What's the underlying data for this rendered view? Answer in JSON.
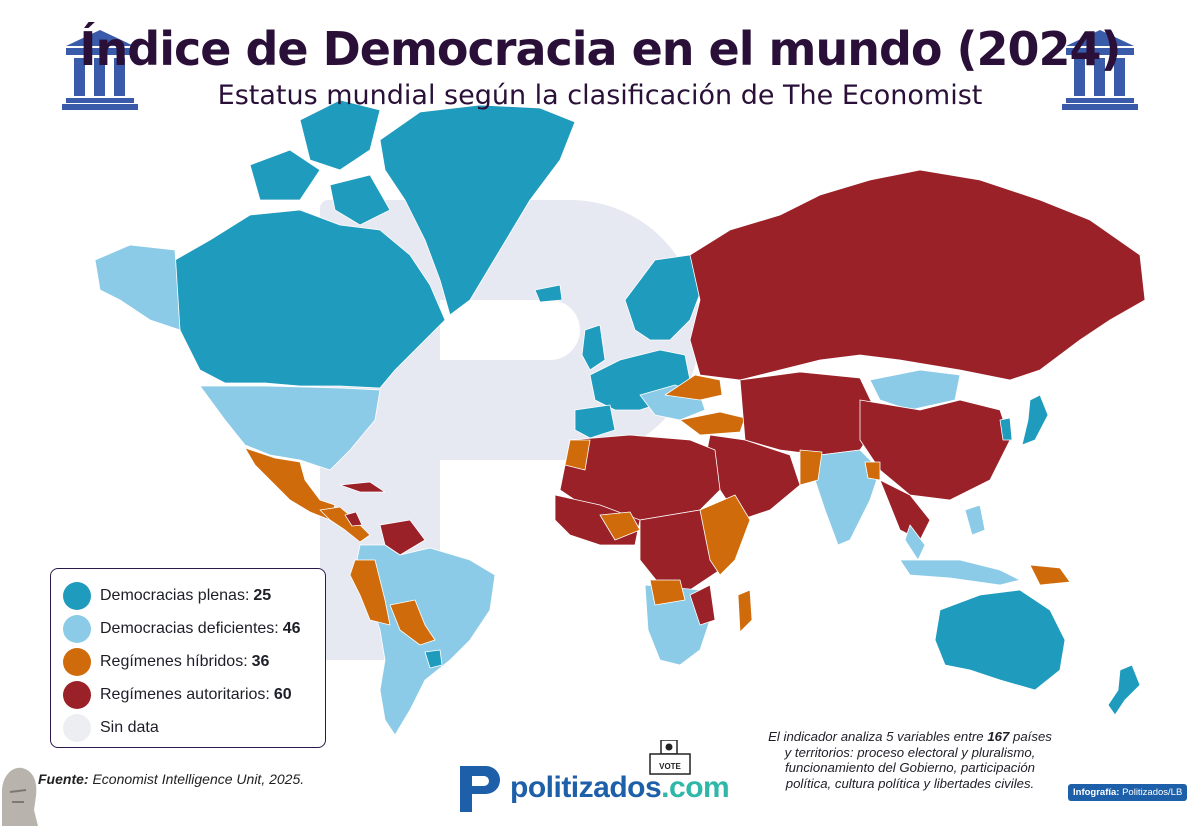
{
  "header": {
    "title": "Índice de Democracia en el mundo (2024)",
    "subtitle": "Estatus mundial según la clasificación de The Economist"
  },
  "legend": {
    "items": [
      {
        "label": "Democracias plenas:",
        "count": "25",
        "color": "#1f9bbd"
      },
      {
        "label": "Democracias deficientes:",
        "count": "46",
        "color": "#8ccbe7"
      },
      {
        "label": "Regímenes híbridos:",
        "count": "36",
        "color": "#cf6b0a"
      },
      {
        "label": "Regímenes autoritarios:",
        "count": "60",
        "color": "#9b2128"
      },
      {
        "label": "Sin data",
        "count": "",
        "color": "#eceef1"
      }
    ]
  },
  "source": {
    "label": "Fuente:",
    "text": "Economist Intelligence Unit, 2025."
  },
  "note": {
    "before": "El indicador analiza 5 variables entre",
    "count": "167",
    "after": "países y territorios: proceso electoral y pluralismo, funcionamiento del Gobierno, participación política, cultura política y libertades civiles."
  },
  "logo": {
    "name": "politizados",
    "domain": ".com",
    "ballot_text": "VOTE"
  },
  "credit": {
    "label": "Infografía:",
    "text": "Politizados/LB"
  },
  "icons": [
    "pillar-icon",
    "ballot-box-icon",
    "p-logo-icon"
  ]
}
